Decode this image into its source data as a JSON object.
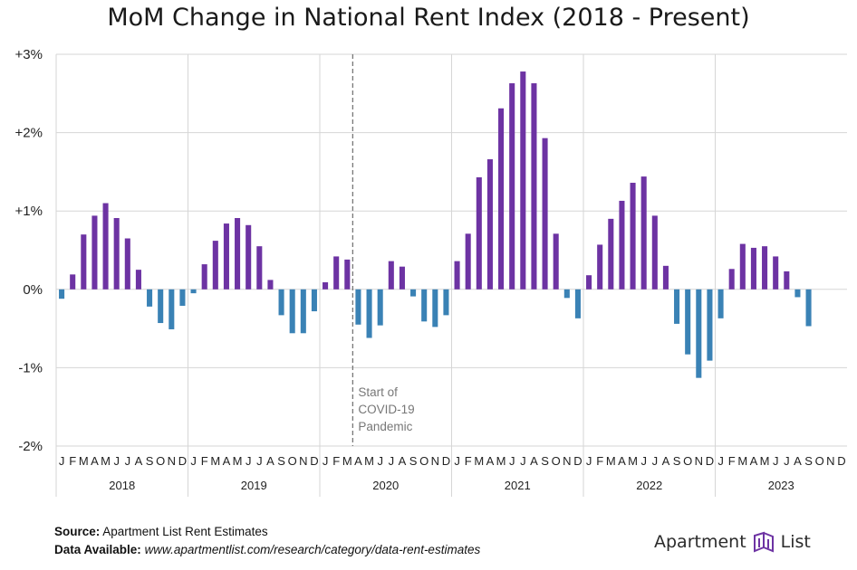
{
  "title": "MoM Change in National Rent Index (2018 - Present)",
  "footer": {
    "source_label": "Source:",
    "source_text": "Apartment List Rent Estimates",
    "data_label": "Data Available:",
    "data_text": "www.apartmentlist.com/research/category/data-rent-estimates"
  },
  "logo": {
    "word1": "Apartment",
    "word2": "List",
    "icon": "apartment-list-logo-icon"
  },
  "colors": {
    "positive": "#6d33a3",
    "negative": "#3a82b5",
    "grid": "#d6d6d6",
    "annotation": "#777777"
  },
  "chart_data": {
    "type": "bar",
    "title": "MoM Change in National Rent Index (2018 - Present)",
    "ylim": [
      -2,
      3
    ],
    "yticks": [
      {
        "value": 3,
        "label": "+3%"
      },
      {
        "value": 2,
        "label": "+2%"
      },
      {
        "value": 1,
        "label": "+1%"
      },
      {
        "value": 0,
        "label": "0%"
      },
      {
        "value": -1,
        "label": "-1%"
      },
      {
        "value": -2,
        "label": "-2%"
      }
    ],
    "month_letters": [
      "J",
      "F",
      "M",
      "A",
      "M",
      "J",
      "J",
      "A",
      "S",
      "O",
      "N",
      "D"
    ],
    "years": [
      {
        "label": "2018",
        "values": [
          -0.12,
          0.19,
          0.7,
          0.94,
          1.1,
          0.91,
          0.65,
          0.25,
          -0.22,
          -0.43,
          -0.51,
          -0.21
        ]
      },
      {
        "label": "2019",
        "values": [
          -0.05,
          0.32,
          0.62,
          0.84,
          0.91,
          0.82,
          0.55,
          0.12,
          -0.33,
          -0.56,
          -0.56,
          -0.28
        ]
      },
      {
        "label": "2020",
        "values": [
          0.09,
          0.42,
          0.38,
          -0.45,
          -0.62,
          -0.46,
          0.36,
          0.29,
          -0.09,
          -0.41,
          -0.48,
          -0.33
        ]
      },
      {
        "label": "2021",
        "values": [
          0.36,
          0.71,
          1.43,
          1.66,
          2.31,
          2.63,
          2.78,
          2.63,
          1.93,
          0.71,
          -0.11,
          -0.37
        ]
      },
      {
        "label": "2022",
        "values": [
          0.18,
          0.57,
          0.9,
          1.13,
          1.36,
          1.44,
          0.94,
          0.3,
          -0.44,
          -0.83,
          -1.13,
          -0.91
        ]
      },
      {
        "label": "2023",
        "values": [
          -0.37,
          0.26,
          0.58,
          0.53,
          0.55,
          0.42,
          0.23,
          -0.1,
          -0.47
        ]
      }
    ],
    "annotation": {
      "year_index": 2,
      "after_month_index": 2,
      "lines": [
        "Start of",
        "COVID-19",
        "Pandemic"
      ]
    }
  }
}
